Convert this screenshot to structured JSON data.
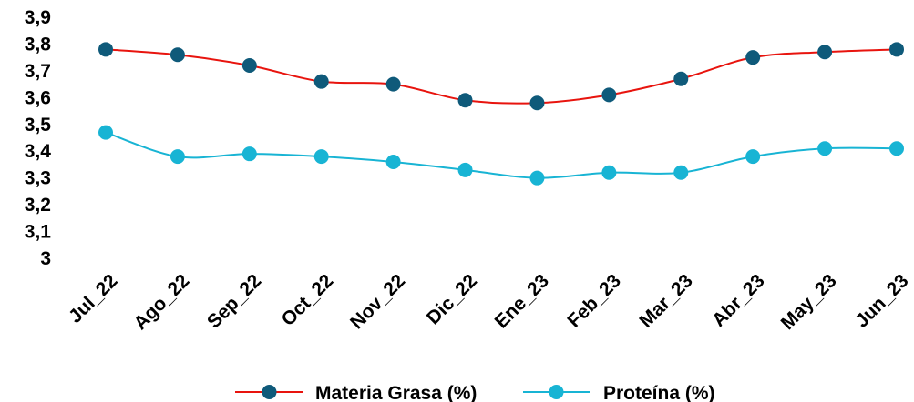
{
  "chart_data": {
    "type": "line",
    "categories": [
      "Jul_22",
      "Ago_22",
      "Sep_22",
      "Oct_22",
      "Nov_22",
      "Dic_22",
      "Ene_23",
      "Feb_23",
      "Mar_23",
      "Abr_23",
      "May_23",
      "Jun_23"
    ],
    "series": [
      {
        "name": "Materia Grasa (%)",
        "values": [
          3.78,
          3.76,
          3.72,
          3.66,
          3.65,
          3.59,
          3.58,
          3.61,
          3.67,
          3.75,
          3.77,
          3.78
        ],
        "line_color": "#e8140e",
        "marker_color": "#0f5a7a"
      },
      {
        "name": "Proteína (%)",
        "values": [
          3.47,
          3.38,
          3.39,
          3.38,
          3.36,
          3.33,
          3.3,
          3.32,
          3.32,
          3.38,
          3.41,
          3.41
        ],
        "line_color": "#18b4d4",
        "marker_color": "#18b4d4"
      }
    ],
    "y_ticks": [
      "3",
      "3,1",
      "3,2",
      "3,3",
      "3,4",
      "3,5",
      "3,6",
      "3,7",
      "3,8",
      "3,9"
    ],
    "ylim": [
      3,
      3.9
    ],
    "grid": false,
    "legend_position": "bottom"
  }
}
